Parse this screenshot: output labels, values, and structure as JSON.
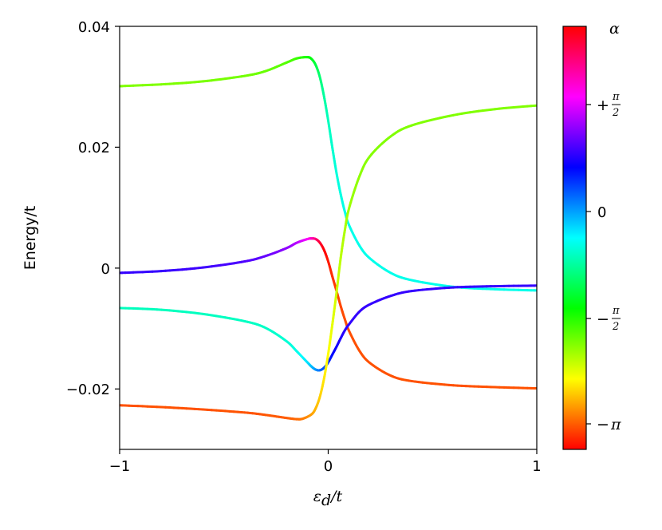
{
  "chart_data": {
    "type": "line",
    "xlabel": "ε_d/t",
    "ylabel": "Energy/t",
    "xlim": [
      -1,
      1
    ],
    "ylim": [
      -0.03,
      0.04
    ],
    "x_ticks": [
      "−1",
      "0",
      "1"
    ],
    "y_ticks": [
      "−0.02",
      "0",
      "0.02",
      "0.04"
    ],
    "colormap": "hsv (phase α)",
    "colorbar": {
      "title": "α",
      "ticks": [
        "+π/2",
        "0",
        "−π/2",
        "−π"
      ]
    },
    "series": [
      {
        "x": [
          -1.0,
          -0.8,
          -0.6,
          -0.4,
          -0.3,
          -0.2,
          -0.15,
          -0.1,
          -0.08,
          -0.06,
          -0.04,
          -0.02,
          0.0,
          0.02,
          0.04,
          0.06,
          0.08,
          0.1,
          0.15,
          0.2,
          0.3,
          0.4,
          0.6,
          0.8,
          1.0
        ],
        "y": [
          0.0301,
          0.0304,
          0.0309,
          0.0318,
          0.0326,
          0.034,
          0.0347,
          0.0349,
          0.0346,
          0.0336,
          0.0316,
          0.0284,
          0.0244,
          0.0199,
          0.0157,
          0.0122,
          0.0093,
          0.0071,
          0.0037,
          0.0016,
          -0.0008,
          -0.002,
          -0.0031,
          -0.0035,
          -0.0037
        ],
        "alpha": [
          -1.571,
          -1.571,
          -1.55,
          -1.52,
          -1.48,
          -1.4,
          -1.3,
          -1.15,
          -1.0,
          -0.8,
          -0.6,
          -0.4,
          -0.28,
          -0.2,
          -0.15,
          -0.12,
          -0.1,
          -0.09,
          -0.08,
          -0.08,
          -0.08,
          -0.08,
          -0.08,
          -0.08,
          -0.08
        ]
      },
      {
        "x": [
          -1.0,
          -0.8,
          -0.6,
          -0.4,
          -0.3,
          -0.2,
          -0.15,
          -0.1,
          -0.08,
          -0.06,
          -0.04,
          -0.02,
          0.0,
          0.02,
          0.04,
          0.06,
          0.08,
          0.1,
          0.15,
          0.2,
          0.3,
          0.4,
          0.6,
          0.8,
          1.0
        ],
        "y": [
          -0.0008,
          -0.0005,
          0.0001,
          0.0011,
          0.002,
          0.0033,
          0.0042,
          0.0048,
          0.0049,
          0.0048,
          0.0042,
          0.003,
          0.0011,
          -0.0014,
          -0.0038,
          -0.0063,
          -0.0085,
          -0.0104,
          -0.0137,
          -0.0157,
          -0.0178,
          -0.0187,
          -0.0194,
          -0.0197,
          -0.0199
        ],
        "alpha": [
          1.26,
          1.26,
          1.3,
          1.36,
          1.45,
          1.62,
          1.78,
          2.05,
          2.3,
          2.6,
          2.9,
          3.1,
          -3.05,
          -2.95,
          -2.88,
          -2.85,
          -2.83,
          -2.82,
          -2.81,
          -2.81,
          -2.81,
          -2.81,
          -2.81,
          -2.81,
          -2.81
        ]
      },
      {
        "x": [
          -1.0,
          -0.8,
          -0.6,
          -0.4,
          -0.3,
          -0.2,
          -0.15,
          -0.1,
          -0.08,
          -0.06,
          -0.04,
          -0.02,
          0.0,
          0.02,
          0.04,
          0.06,
          0.08,
          0.1,
          0.15,
          0.2,
          0.3,
          0.4,
          0.6,
          0.8,
          1.0
        ],
        "y": [
          -0.0066,
          -0.0069,
          -0.0076,
          -0.0088,
          -0.0099,
          -0.0121,
          -0.0138,
          -0.0156,
          -0.0163,
          -0.0168,
          -0.0169,
          -0.0165,
          -0.0156,
          -0.0143,
          -0.013,
          -0.0116,
          -0.0103,
          -0.0093,
          -0.0072,
          -0.006,
          -0.0046,
          -0.0038,
          -0.0032,
          -0.003,
          -0.0029
        ],
        "alpha": [
          -0.27,
          -0.27,
          -0.26,
          -0.25,
          -0.23,
          -0.18,
          -0.1,
          0.1,
          0.25,
          0.4,
          0.55,
          0.7,
          0.85,
          1.0,
          1.1,
          1.18,
          1.22,
          1.24,
          1.26,
          1.26,
          1.26,
          1.26,
          1.26,
          1.26,
          1.26
        ]
      },
      {
        "x": [
          -1.0,
          -0.8,
          -0.6,
          -0.4,
          -0.3,
          -0.2,
          -0.15,
          -0.12,
          -0.08,
          -0.06,
          -0.04,
          -0.02,
          0.0,
          0.02,
          0.04,
          0.06,
          0.08,
          0.1,
          0.15,
          0.2,
          0.3,
          0.4,
          0.6,
          0.8,
          1.0
        ],
        "y": [
          -0.0227,
          -0.023,
          -0.0234,
          -0.0239,
          -0.0243,
          -0.0248,
          -0.025,
          -0.0249,
          -0.0242,
          -0.0232,
          -0.0213,
          -0.0183,
          -0.0142,
          -0.0093,
          -0.004,
          0.0017,
          0.0063,
          0.0099,
          0.0152,
          0.0185,
          0.0218,
          0.0236,
          0.0253,
          0.0263,
          0.0269
        ],
        "alpha": [
          -2.81,
          -2.81,
          -2.81,
          -2.8,
          -2.79,
          -2.76,
          -2.72,
          -2.65,
          -2.5,
          -2.4,
          -2.3,
          -2.2,
          -2.1,
          -2.0,
          -1.9,
          -1.82,
          -1.75,
          -1.7,
          -1.63,
          -1.6,
          -1.57,
          -1.57,
          -1.57,
          -1.57,
          -1.57
        ]
      }
    ],
    "grid": false
  }
}
